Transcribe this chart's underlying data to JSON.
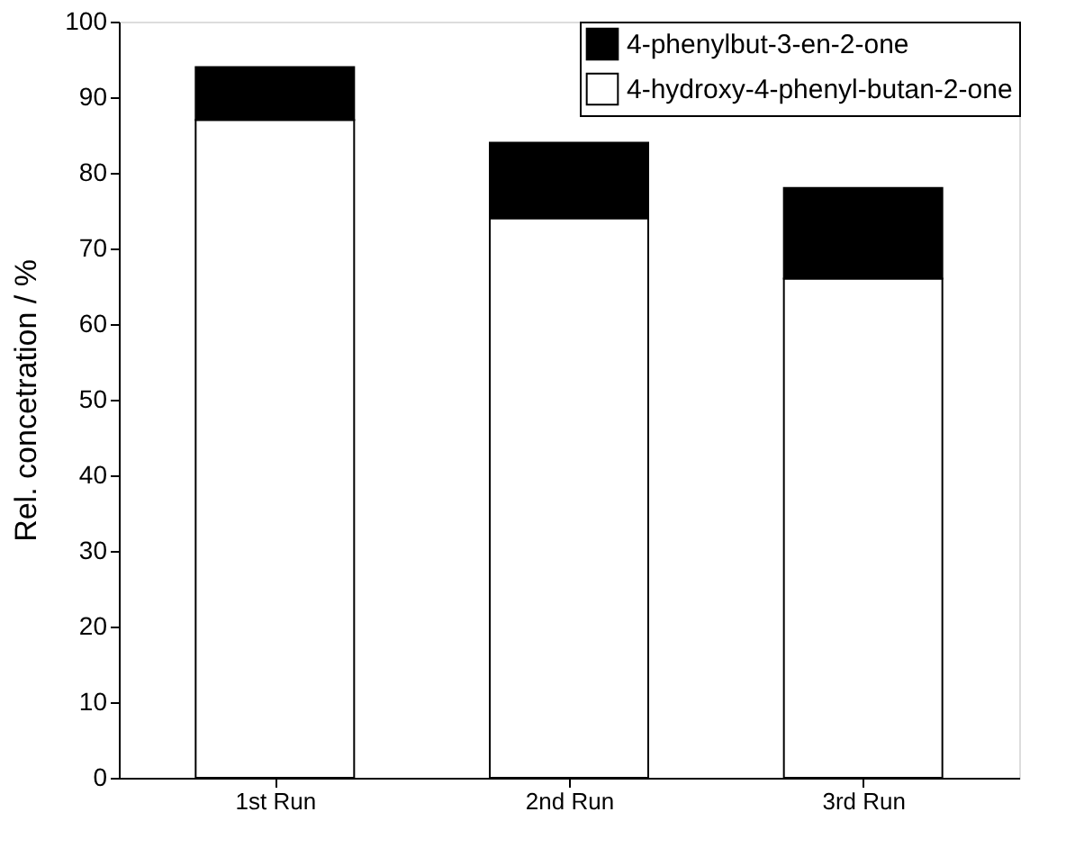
{
  "chart_data": {
    "type": "bar",
    "stacked": true,
    "ylabel": "Rel. concetration / %",
    "categories": [
      "1st Run",
      "2nd Run",
      "3rd Run"
    ],
    "series": [
      {
        "name": "4-hydroxy-4-phenyl-butan-2-one",
        "color": "#ffffff",
        "values": [
          87,
          74,
          66
        ]
      },
      {
        "name": "4-phenylbut-3-en-2-one",
        "color": "#000000",
        "values": [
          7,
          10,
          12
        ]
      }
    ],
    "ylim": [
      0,
      100
    ],
    "yticks": [
      0,
      10,
      20,
      30,
      40,
      50,
      60,
      70,
      80,
      90,
      100
    ],
    "grid": false,
    "legend": "top right"
  }
}
